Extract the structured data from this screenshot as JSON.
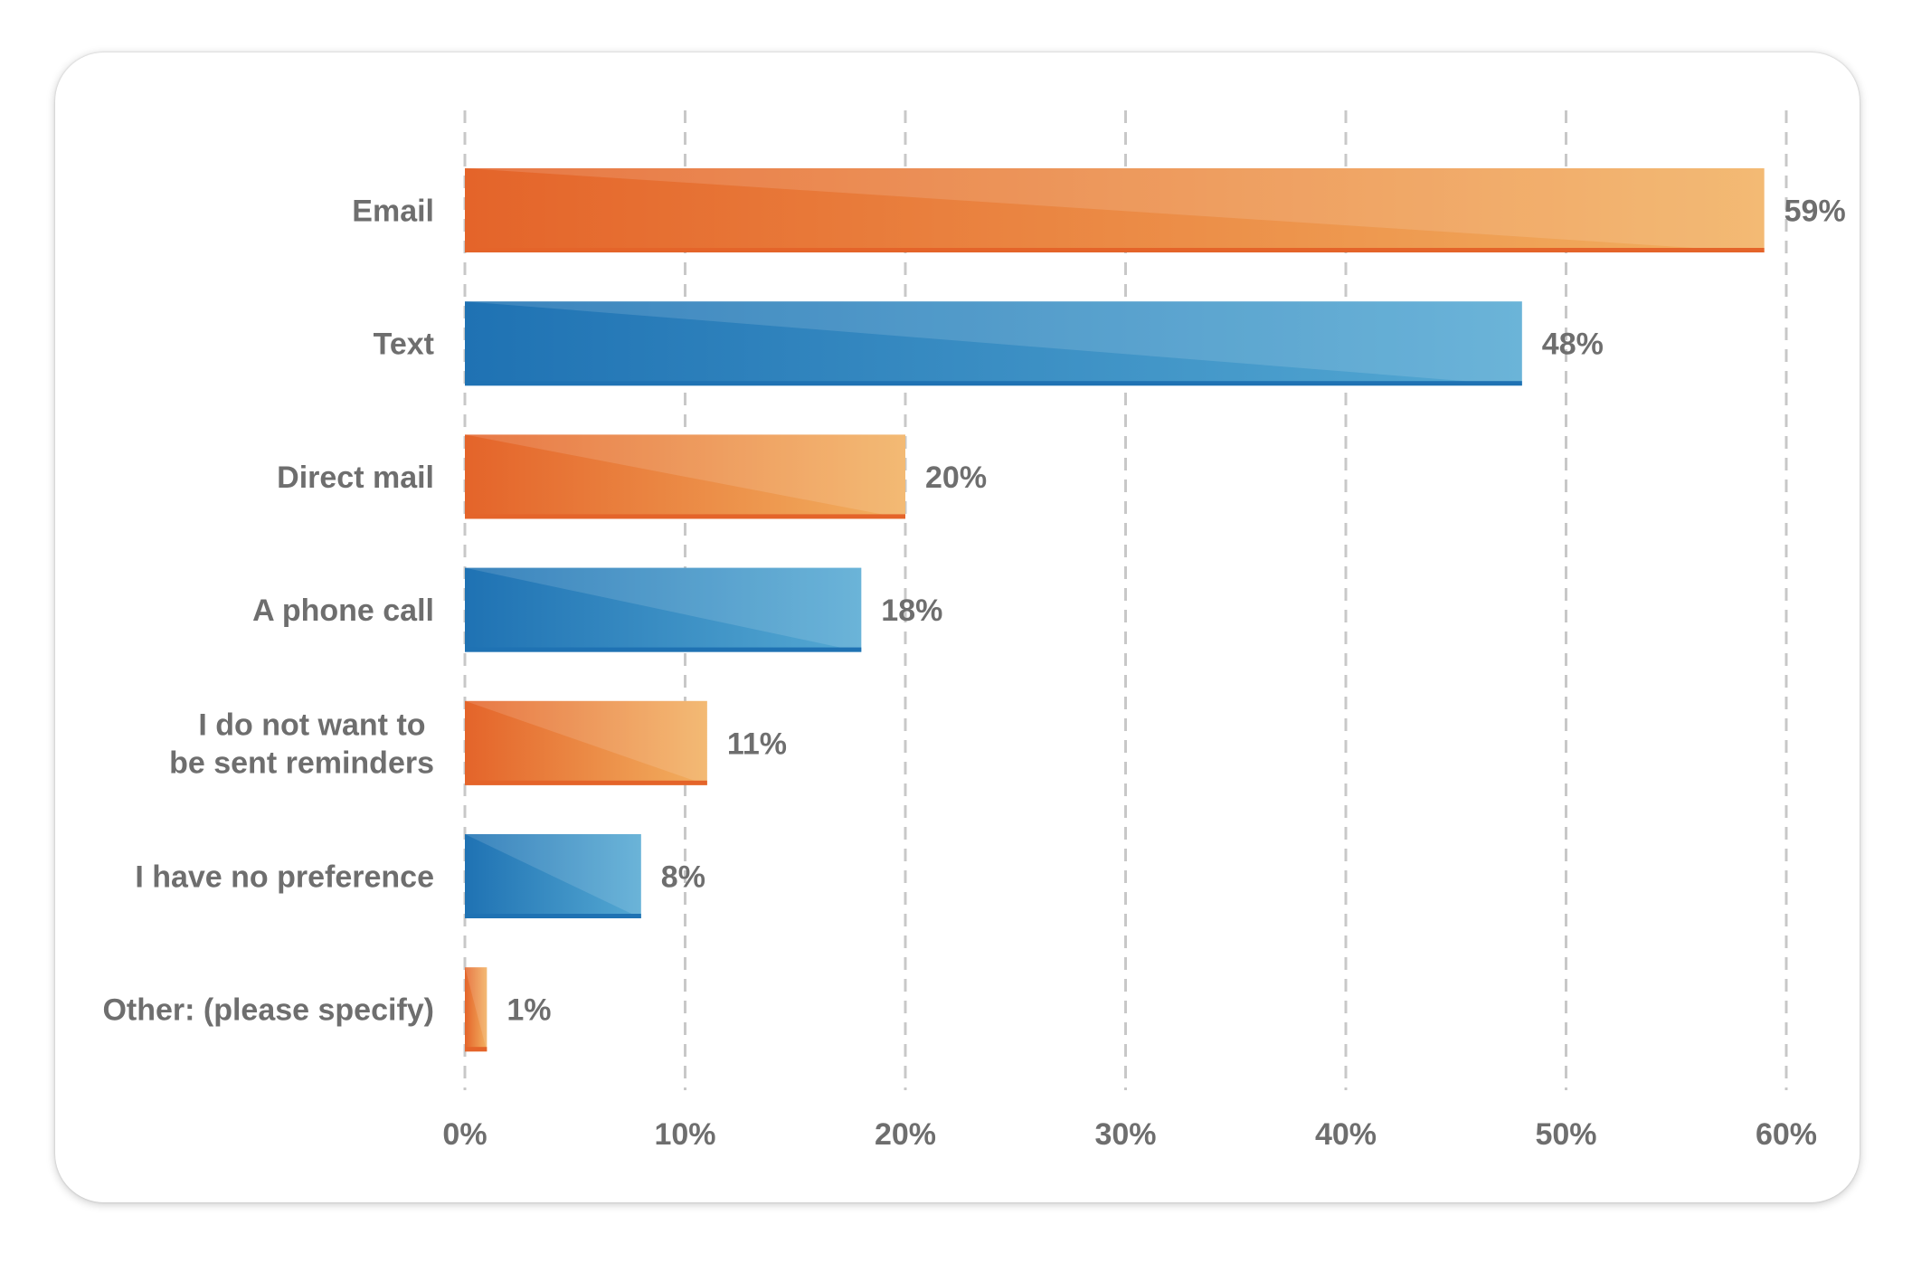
{
  "chart_data": {
    "type": "bar",
    "orientation": "horizontal",
    "categories": [
      "Email",
      "Text",
      "Direct mail",
      "A phone call",
      "I do not want to be sent reminders",
      "I have no preference",
      "Other: (please specify)"
    ],
    "category_lines": [
      [
        "Email"
      ],
      [
        "Text"
      ],
      [
        "Direct mail"
      ],
      [
        "A phone call"
      ],
      [
        "I do not want to ",
        "be sent reminders"
      ],
      [
        "I have no preference"
      ],
      [
        "Other: (please specify)"
      ]
    ],
    "values": [
      59,
      48,
      20,
      18,
      11,
      8,
      1
    ],
    "value_labels": [
      "59%",
      "48%",
      "20%",
      "18%",
      "11%",
      "8%",
      "1%"
    ],
    "bar_colors": [
      "orange",
      "blue",
      "orange",
      "blue",
      "orange",
      "blue",
      "orange"
    ],
    "xlim": [
      0,
      60
    ],
    "x_ticks": [
      0,
      10,
      20,
      30,
      40,
      50,
      60
    ],
    "x_tick_labels": [
      "0%",
      "10%",
      "20%",
      "30%",
      "40%",
      "50%",
      "60%"
    ],
    "grid": "vertical dashed",
    "title": "",
    "xlabel": "",
    "ylabel": ""
  },
  "colors": {
    "orange_dark": "#e4642a",
    "orange_light": "#f2b060",
    "blue_dark": "#1f72b3",
    "blue_light": "#55a9d3",
    "text": "#6e6e6e",
    "grid": "#c8c8c8"
  }
}
